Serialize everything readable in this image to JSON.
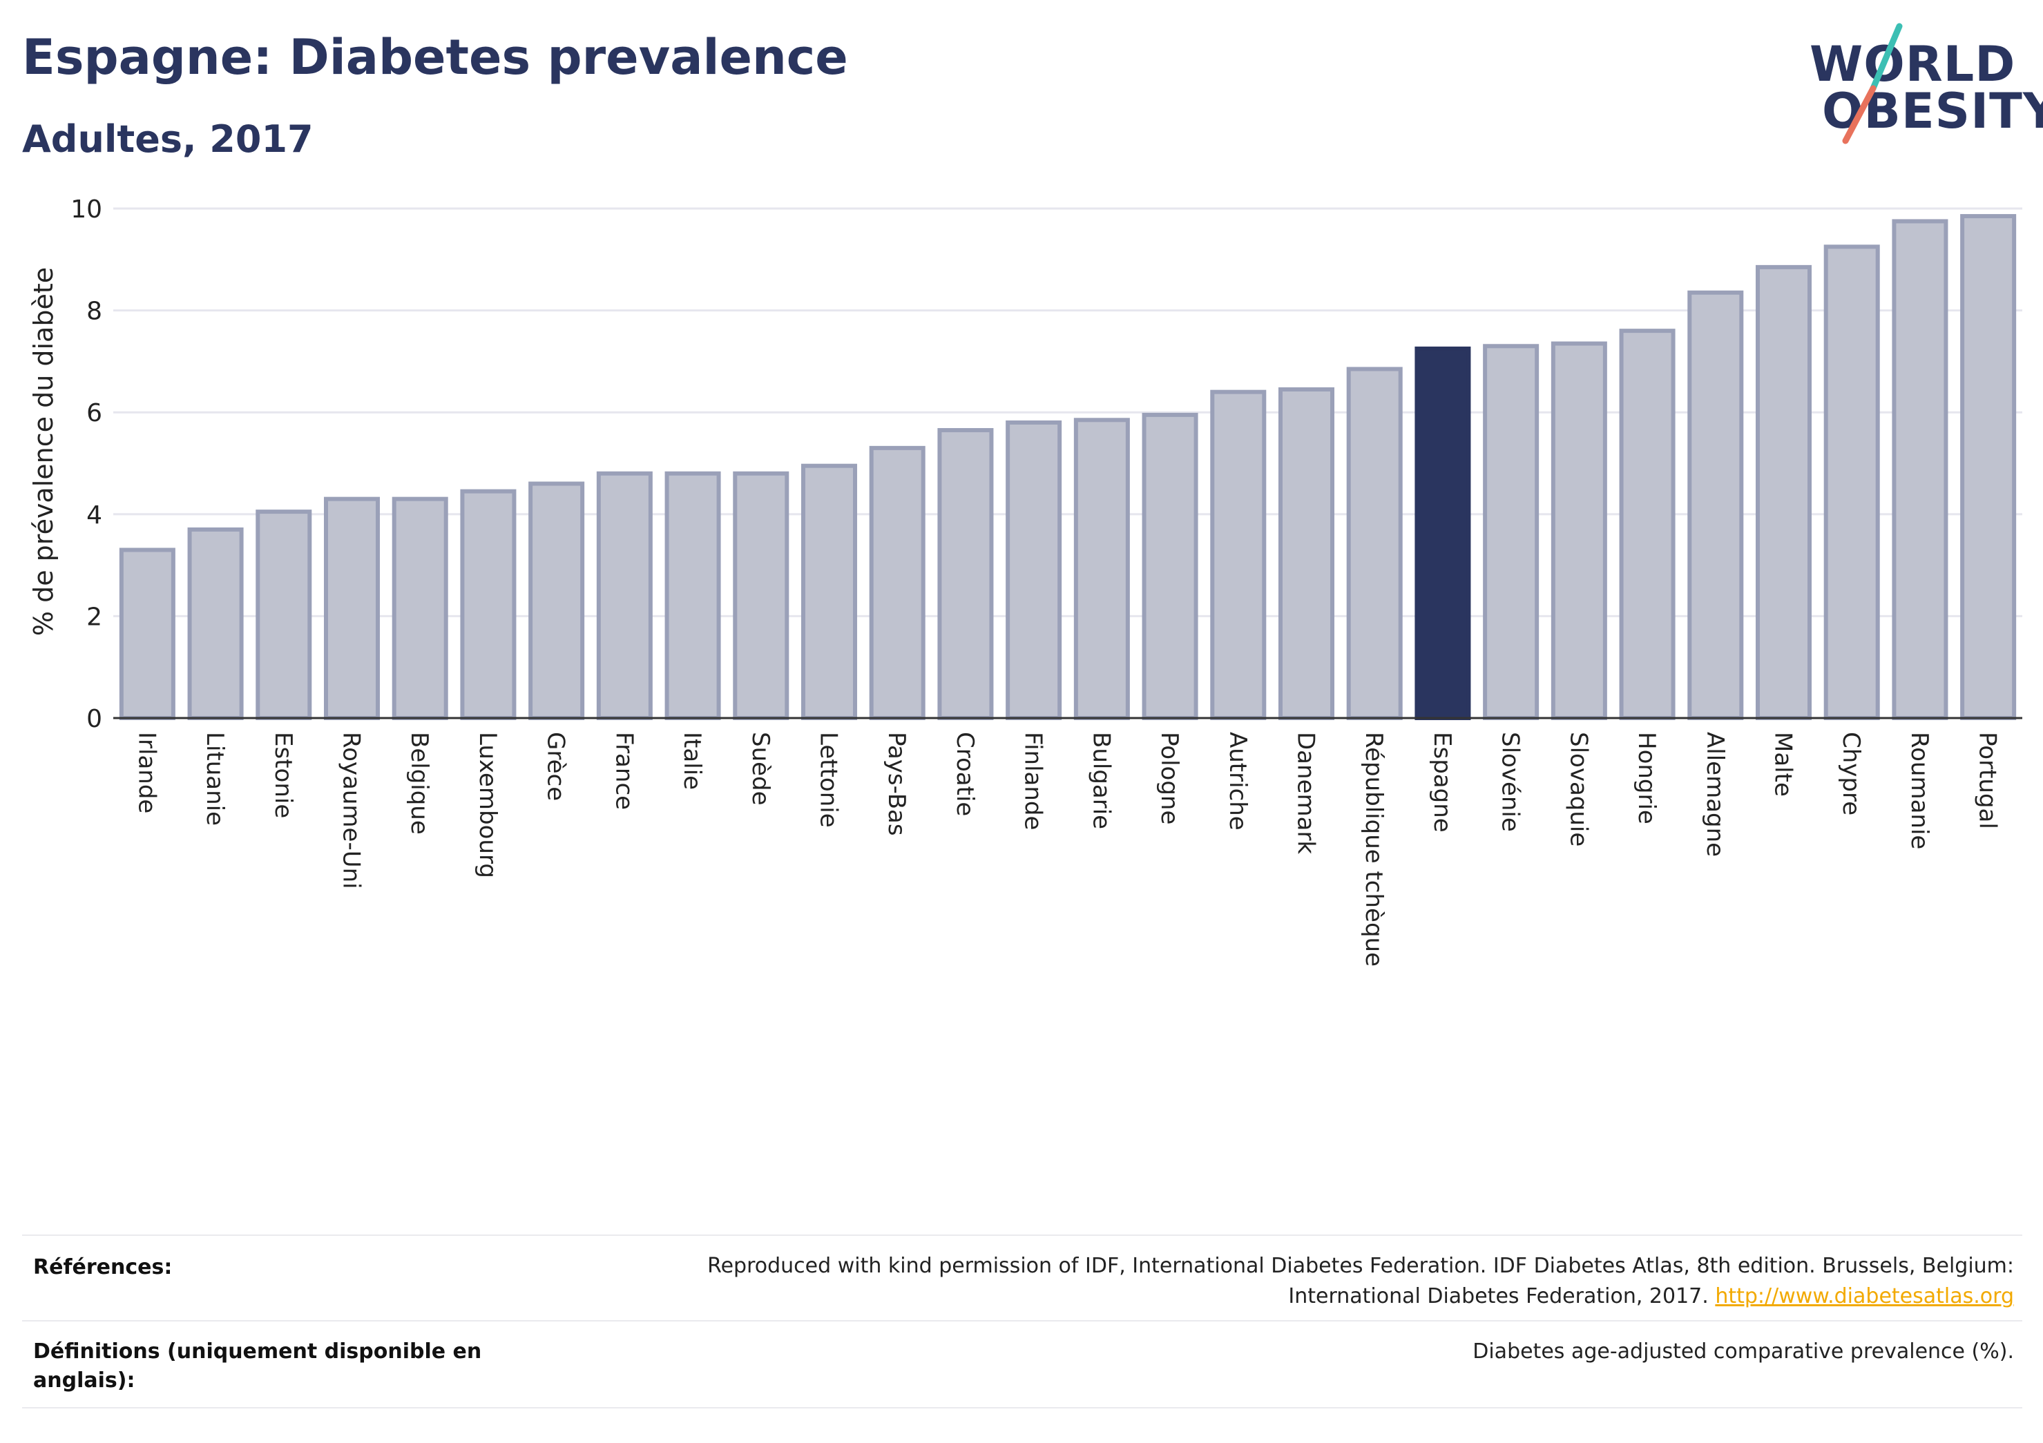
{
  "header": {
    "title": "Espagne: Diabetes prevalence",
    "subtitle": "Adultes, 2017"
  },
  "logo": {
    "line1": "WORLD",
    "line2": "OBESITY",
    "colors": {
      "text": "#2a355f",
      "slash_top": "#3cbfb4",
      "slash_bottom": "#e8725c"
    }
  },
  "colors": {
    "bar_default": "#bfc2cf",
    "bar_border": "#9aa0b8",
    "bar_highlight": "#2a355f",
    "grid": "#e6e6ee",
    "axis": "#333333"
  },
  "chart_data": {
    "type": "bar",
    "title": "",
    "xlabel": "",
    "ylabel": "% de prévalence du diabète",
    "ylim": [
      0,
      10
    ],
    "yticks": [
      0,
      2,
      4,
      6,
      8,
      10
    ],
    "grid": true,
    "highlight": "Espagne",
    "categories": [
      "Irlande",
      "Lituanie",
      "Estonie",
      "Royaume-Uni",
      "Belgique",
      "Luxembourg",
      "Grèce",
      "France",
      "Italie",
      "Suède",
      "Lettonie",
      "Pays-Bas",
      "Croatie",
      "Finlande",
      "Bulgarie",
      "Pologne",
      "Autriche",
      "Danemark",
      "République tchèque",
      "Espagne",
      "Slovénie",
      "Slovaquie",
      "Hongrie",
      "Allemagne",
      "Malte",
      "Chypre",
      "Roumanie",
      "Portugal"
    ],
    "values": [
      3.3,
      3.7,
      4.05,
      4.3,
      4.3,
      4.45,
      4.6,
      4.8,
      4.8,
      4.8,
      4.95,
      5.3,
      5.65,
      5.8,
      5.85,
      5.95,
      6.4,
      6.45,
      6.85,
      7.25,
      7.3,
      7.35,
      7.6,
      8.35,
      8.85,
      9.25,
      9.75,
      9.85
    ]
  },
  "footer": {
    "references_label": "Références:",
    "references_text_1": "Reproduced with kind permission of IDF, International Diabetes Federation. IDF Diabetes Atlas, 8th edition. Brussels, Belgium:",
    "references_text_2": "International Diabetes Federation, 2017.",
    "references_link": "http://www.diabetesatlas.org",
    "definitions_label_1": "Définitions (uniquement disponible en",
    "definitions_label_2": "anglais):",
    "definitions_text": "Diabetes age-adjusted comparative prevalence (%)."
  }
}
